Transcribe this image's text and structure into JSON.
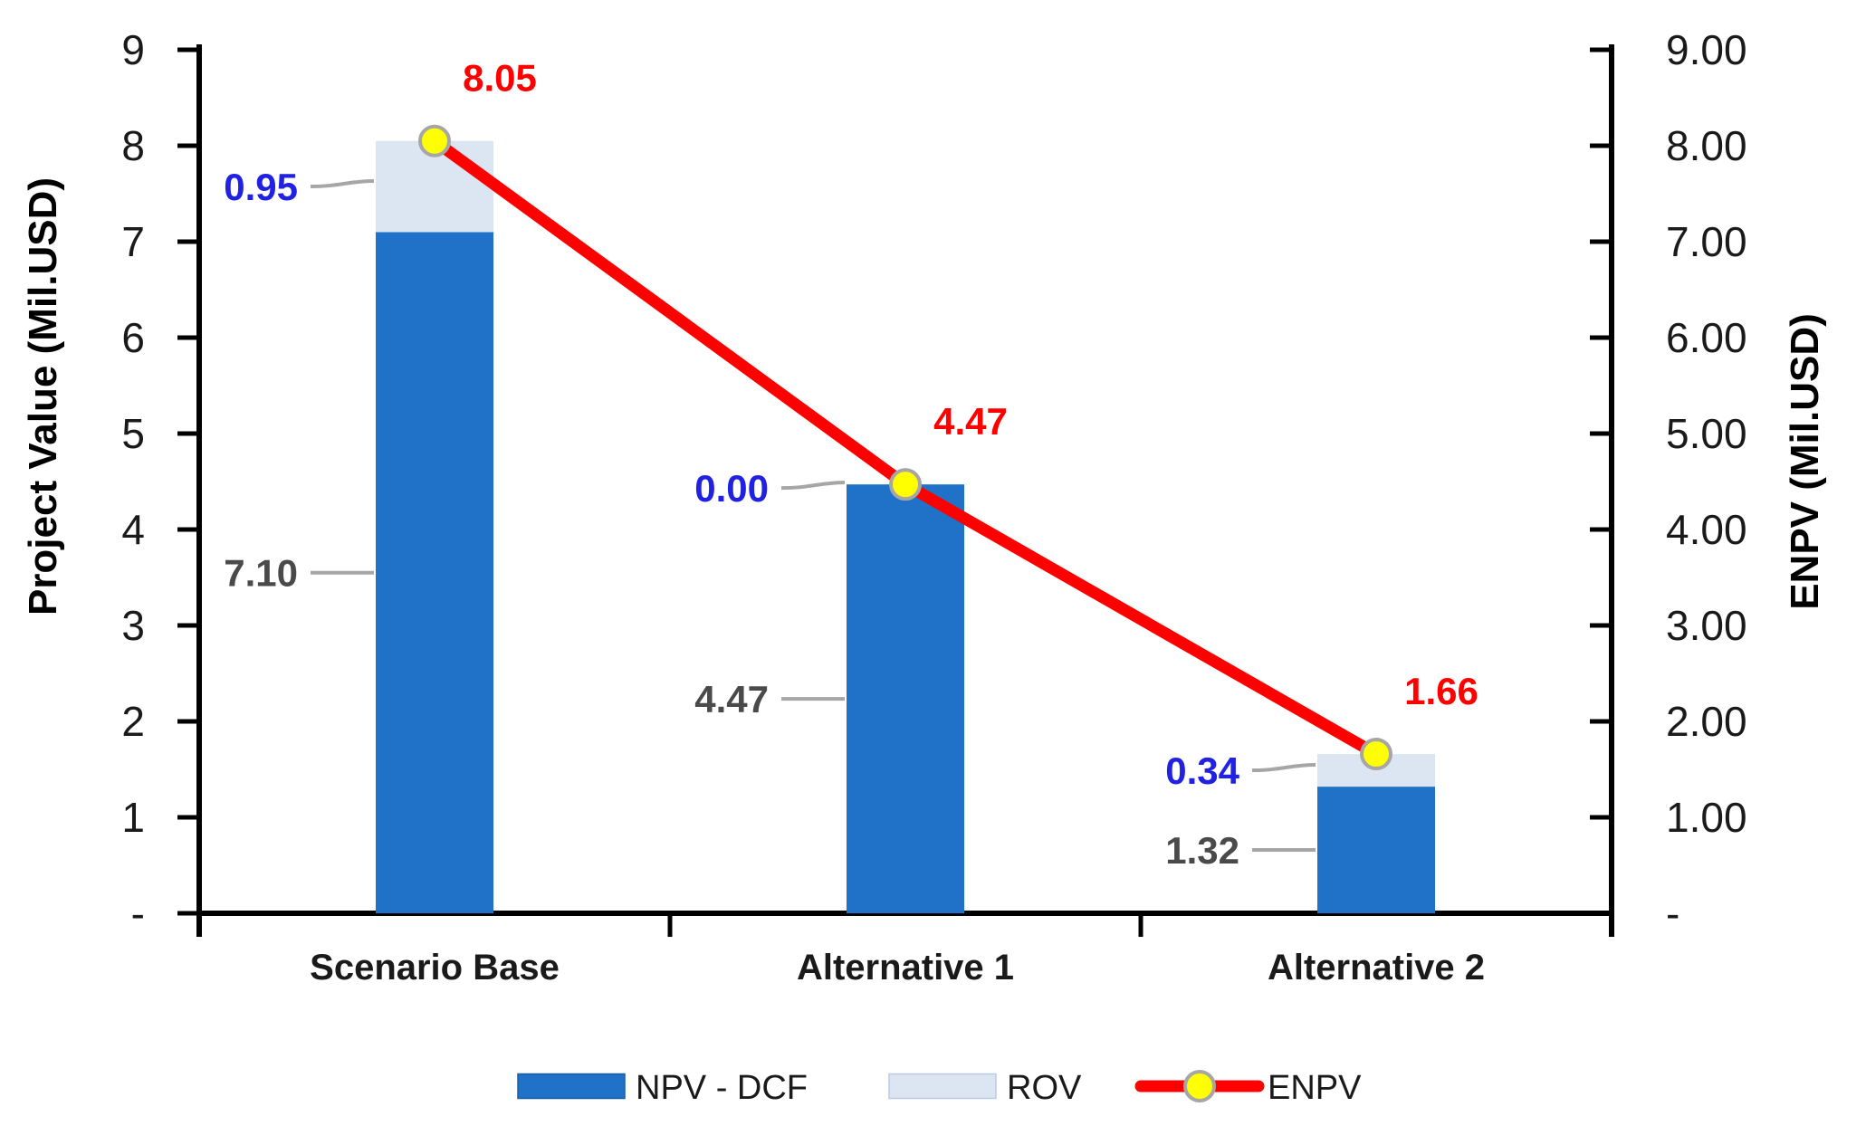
{
  "chart_data": {
    "type": "combo-bar-line",
    "categories": [
      "Scenario Base",
      "Alternative 1",
      "Alternative 2"
    ],
    "series": [
      {
        "name": "NPV - DCF",
        "type": "bar-stacked",
        "values": [
          7.1,
          4.47,
          1.32
        ],
        "labels": [
          "7.10",
          "4.47",
          "1.32"
        ],
        "color": "#1F72C8",
        "label_color": "#4A4A4A"
      },
      {
        "name": "ROV",
        "type": "bar-stacked",
        "values": [
          0.95,
          0.0,
          0.34
        ],
        "labels": [
          "0.95",
          "0.00",
          "0.34"
        ],
        "color": "#DCE6F2",
        "label_color": "#2121E1"
      },
      {
        "name": "ENPV",
        "type": "line",
        "values": [
          8.05,
          4.47,
          1.66
        ],
        "labels": [
          "8.05",
          "4.47",
          "1.66"
        ],
        "color": "#FF0000",
        "marker_fill": "#FFFF00",
        "marker_stroke": "#A6A6A6",
        "label_color": "#FF0000"
      }
    ],
    "left_axis": {
      "title": "Project Value (Mil.USD)",
      "tick_labels": [
        "9",
        "8",
        "7",
        "6",
        "5",
        "4",
        "3",
        "2",
        "1",
        "-"
      ],
      "max": 9,
      "min": 0
    },
    "right_axis": {
      "title": "ENPV (Mil.USD)",
      "tick_labels": [
        "9.00",
        "8.00",
        "7.00",
        "6.00",
        "5.00",
        "4.00",
        "3.00",
        "2.00",
        "1.00",
        "-"
      ],
      "max": 9,
      "min": 0
    },
    "legend": {
      "position": "bottom",
      "items": [
        {
          "label": "NPV - DCF",
          "swatch": "bar",
          "color": "#1F72C8"
        },
        {
          "label": "ROV",
          "swatch": "bar",
          "color": "#DCE6F2"
        },
        {
          "label": "ENPV",
          "swatch": "line-marker",
          "color": "#FF0000",
          "marker_fill": "#FFFF00",
          "marker_stroke": "#A6A6A6"
        }
      ]
    },
    "grid": "off",
    "leader_line_color": "#A6A6A6",
    "axis_color": "#000000",
    "category_label_color": "#1A1A1A"
  }
}
